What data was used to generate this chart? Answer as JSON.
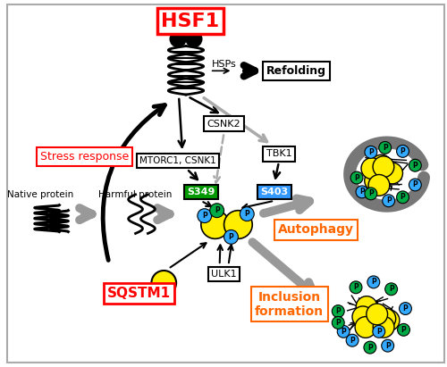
{
  "bg_color": "#ffffff",
  "border_color": "#aaaaaa",
  "hsf1_label": "HSF1",
  "hsf1_color": "#ff0000",
  "hsps_label": "HSPs",
  "refolding_label": "Refolding",
  "stress_label": "Stress response",
  "mtorc1_label": "MTORC1, CSNK1",
  "csnk2_label": "CSNK2",
  "tbk1_label": "TBK1",
  "s349_label": "S349",
  "s349_color": "#009900",
  "s403_label": "S403",
  "s403_color": "#3399ff",
  "ulk1_label": "ULK1",
  "sqstm1_label": "SQSTM1",
  "sqstm1_color": "#ff0000",
  "autophagy_label": "Autophagy",
  "autophagy_color": "#ff6600",
  "inclusion_label": "Inclusion\nformation",
  "inclusion_color": "#ff6600",
  "native_label": "Native protein",
  "harmful_label": "Harmful protein",
  "p_label": "P",
  "yellow_color": "#ffee00",
  "blue_color": "#33aaff",
  "green_color": "#00aa44",
  "gray_arrow": "#888888",
  "black": "#000000"
}
